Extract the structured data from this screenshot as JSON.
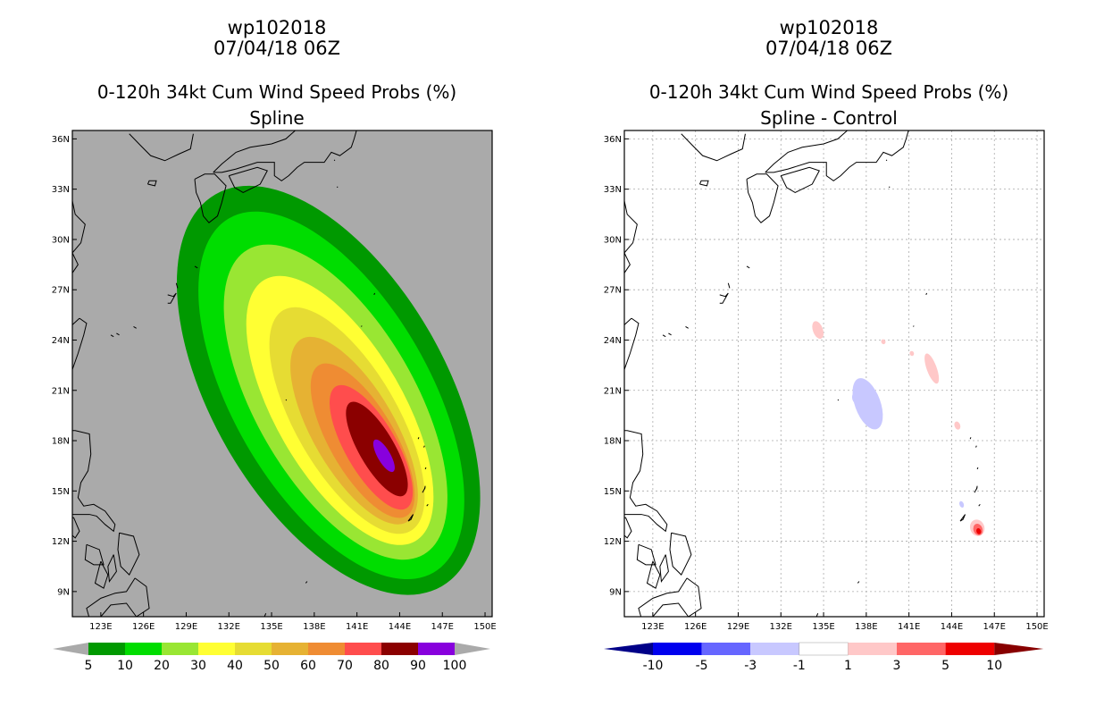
{
  "left": {
    "storm_id": "wp102018",
    "datetime": "07/04/18 06Z",
    "title": "0-120h 34kt Cum Wind Speed Probs (%)",
    "subtitle": "Spline",
    "background": "#aaaaaa"
  },
  "right": {
    "storm_id": "wp102018",
    "datetime": "07/04/18 06Z",
    "title": "0-120h 34kt Cum Wind Speed Probs (%)",
    "subtitle": "Spline - Control",
    "background": "#ffffff"
  },
  "axes": {
    "lon_labels": [
      "123E",
      "126E",
      "129E",
      "132E",
      "135E",
      "138E",
      "141E",
      "144E",
      "147E",
      "150E"
    ],
    "lat_labels": [
      "36N",
      "33N",
      "30N",
      "27N",
      "24N",
      "21N",
      "18N",
      "15N",
      "12N",
      "9N"
    ],
    "lon_range": [
      121,
      150.5
    ],
    "lat_range": [
      7.5,
      36.5
    ]
  },
  "left_colorbar": {
    "labels": [
      "5",
      "10",
      "20",
      "30",
      "40",
      "50",
      "60",
      "70",
      "80",
      "90",
      "100"
    ],
    "colors": [
      "#009900",
      "#00dd00",
      "#99e633",
      "#ffff33",
      "#e6dc33",
      "#e6b233",
      "#ef8c33",
      "#ff4d4d",
      "#8b0000",
      "#8800dd"
    ],
    "extend_color": "#aaaaaa"
  },
  "right_colorbar": {
    "labels": [
      "-10",
      "-5",
      "-3",
      "-1",
      "1",
      "3",
      "5",
      "10"
    ],
    "colors": [
      "#0000ee",
      "#6666ff",
      "#c8c8ff",
      "#ffffff",
      "#ffc8c8",
      "#ff6666",
      "#ee0000"
    ],
    "extend_low": "#000088",
    "extend_high": "#880000"
  },
  "probability_levels": [
    {
      "value": 5,
      "color": "#009900",
      "center": [
        139.0,
        21.0
      ],
      "rx": 8.2,
      "ry": 13.5
    },
    {
      "value": 10,
      "color": "#00dd00",
      "center": [
        139.2,
        20.7
      ],
      "rx": 6.9,
      "ry": 12.2
    },
    {
      "value": 20,
      "color": "#99e633",
      "center": [
        139.5,
        20.3
      ],
      "rx": 5.6,
      "ry": 10.5
    },
    {
      "value": 30,
      "color": "#ffff33",
      "center": [
        139.8,
        19.8
      ],
      "rx": 4.5,
      "ry": 9.0
    },
    {
      "value": 40,
      "color": "#e6dc33",
      "center": [
        140.3,
        19.2
      ],
      "rx": 3.6,
      "ry": 7.6
    },
    {
      "value": 50,
      "color": "#e6b233",
      "center": [
        140.8,
        18.6
      ],
      "rx": 2.9,
      "ry": 6.3
    },
    {
      "value": 60,
      "color": "#ef8c33",
      "center": [
        141.4,
        18.0
      ],
      "rx": 2.3,
      "ry": 5.2
    },
    {
      "value": 70,
      "color": "#ff4d4d",
      "center": [
        142.0,
        17.6
      ],
      "rx": 1.8,
      "ry": 4.2
    },
    {
      "value": 80,
      "color": "#8b0000",
      "center": [
        142.4,
        17.5
      ],
      "rx": 1.25,
      "ry": 3.2
    },
    {
      "value": 90,
      "color": "#8800dd",
      "center": [
        142.9,
        17.1
      ],
      "rx": 0.45,
      "ry": 1.1
    }
  ],
  "difference_blobs": [
    {
      "value": -3,
      "color": "#c8c8ff",
      "center": [
        138.1,
        20.2
      ],
      "rx": 0.9,
      "ry": 1.6
    },
    {
      "value": -3,
      "color": "#c8c8ff",
      "center": [
        137.6,
        20.6
      ],
      "rx": 0.6,
      "ry": 0.5
    },
    {
      "value": -3,
      "color": "#c8c8ff",
      "center": [
        144.7,
        14.2
      ],
      "rx": 0.15,
      "ry": 0.2
    },
    {
      "value": 3,
      "color": "#ffc8c8",
      "center": [
        134.6,
        24.6
      ],
      "rx": 0.35,
      "ry": 0.55
    },
    {
      "value": 3,
      "color": "#ffc8c8",
      "center": [
        142.6,
        22.3
      ],
      "rx": 0.35,
      "ry": 0.95
    },
    {
      "value": 3,
      "color": "#ffc8c8",
      "center": [
        144.4,
        18.9
      ],
      "rx": 0.2,
      "ry": 0.25
    },
    {
      "value": 3,
      "color": "#ffc8c8",
      "center": [
        139.2,
        23.9
      ],
      "rx": 0.15,
      "ry": 0.15
    },
    {
      "value": 3,
      "color": "#ffc8c8",
      "center": [
        141.2,
        23.2
      ],
      "rx": 0.15,
      "ry": 0.15
    },
    {
      "value": 3,
      "color": "#ffc8c8",
      "center": [
        145.8,
        12.8
      ],
      "rx": 0.5,
      "ry": 0.5
    },
    {
      "value": 5,
      "color": "#ff6666",
      "center": [
        145.85,
        12.7
      ],
      "rx": 0.32,
      "ry": 0.35
    },
    {
      "value": 10,
      "color": "#ee0000",
      "center": [
        145.9,
        12.6
      ],
      "rx": 0.16,
      "ry": 0.18
    }
  ]
}
